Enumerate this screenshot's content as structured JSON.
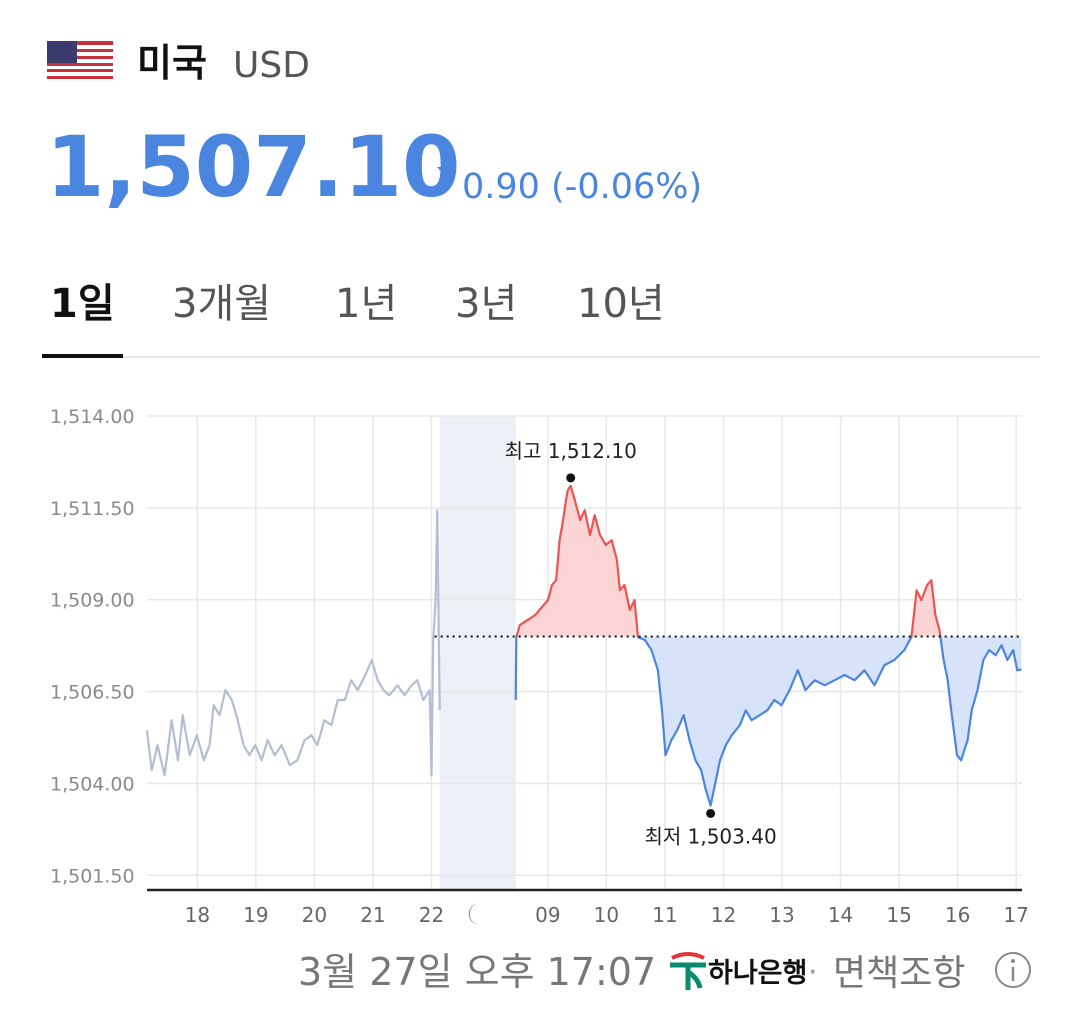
{
  "header": {
    "country": "미국",
    "currency": "USD",
    "rate": "1,507.10",
    "change": "0.90 (-0.06%)"
  },
  "tabs": [
    "1일",
    "3개월",
    "1년",
    "3년",
    "10년"
  ],
  "chart_data": {
    "type": "line",
    "ylim": [
      1501.1,
      1514.0
    ],
    "yticks": [
      {
        "value": 1514.0,
        "label": "1,514.00"
      },
      {
        "value": 1511.5,
        "label": "1,511.50"
      },
      {
        "value": 1509.0,
        "label": "1,509.00"
      },
      {
        "value": 1506.5,
        "label": "1,506.50"
      },
      {
        "value": 1504.0,
        "label": "1,504.00"
      },
      {
        "value": 1501.5,
        "label": "1,501.50"
      }
    ],
    "grid": true,
    "reference_line": 1508.0,
    "sessions": [
      {
        "xlim": [
          17.14,
          22.14
        ],
        "xticks": [
          18,
          19,
          20,
          21,
          22
        ],
        "series": {
          "color": "#b3bdd3",
          "x": [
            17.14,
            17.22,
            17.32,
            17.44,
            17.56,
            17.67,
            17.75,
            17.87,
            17.99,
            18.11,
            18.21,
            18.28,
            18.38,
            18.48,
            18.59,
            18.69,
            18.79,
            18.89,
            18.99,
            19.1,
            19.2,
            19.32,
            19.44,
            19.58,
            19.71,
            19.83,
            19.95,
            20.05,
            20.17,
            20.29,
            20.4,
            20.52,
            20.63,
            20.74,
            20.87,
            20.98,
            21.08,
            21.18,
            21.28,
            21.42,
            21.54,
            21.66,
            21.76,
            21.86,
            21.97,
            22.0,
            22.03,
            22.07,
            22.1,
            22.14
          ],
          "values": [
            1505.45,
            1504.36,
            1505.04,
            1504.22,
            1505.72,
            1504.63,
            1505.86,
            1504.77,
            1505.31,
            1504.63,
            1505.04,
            1506.13,
            1505.86,
            1506.54,
            1506.27,
            1505.72,
            1505.04,
            1504.77,
            1505.04,
            1504.63,
            1505.18,
            1504.77,
            1505.04,
            1504.5,
            1504.63,
            1505.18,
            1505.31,
            1505.04,
            1505.72,
            1505.59,
            1506.27,
            1506.27,
            1506.81,
            1506.54,
            1506.95,
            1507.36,
            1506.81,
            1506.54,
            1506.4,
            1506.67,
            1506.4,
            1506.67,
            1506.81,
            1506.27,
            1506.54,
            1504.22,
            1507.9,
            1508.99,
            1511.44,
            1505.99
          ]
        }
      },
      {
        "xlim": [
          8.45,
          17.1
        ],
        "xticks": [
          {
            "value": 9,
            "label": "09"
          },
          10,
          11,
          12,
          13,
          14,
          15,
          16,
          17
        ],
        "series": {
          "color": "#4a86e0",
          "color_above": "#ef5350",
          "fill": "#d6e3f8",
          "fill_above": "#fbd5d5",
          "x": [
            8.45,
            8.46,
            8.52,
            8.78,
            9.0,
            9.07,
            9.14,
            9.2,
            9.26,
            9.31,
            9.34,
            9.39,
            9.46,
            9.55,
            9.63,
            9.72,
            9.8,
            9.89,
            9.99,
            10.09,
            10.18,
            10.23,
            10.31,
            10.4,
            10.48,
            10.54,
            10.66,
            10.77,
            10.88,
            10.95,
            11.01,
            11.11,
            11.21,
            11.32,
            11.42,
            11.52,
            11.62,
            11.7,
            11.78,
            11.87,
            11.94,
            12.04,
            12.14,
            12.28,
            12.38,
            12.48,
            12.62,
            12.75,
            12.87,
            12.99,
            13.13,
            13.27,
            13.4,
            13.56,
            13.73,
            13.9,
            14.07,
            14.24,
            14.41,
            14.58,
            14.75,
            14.92,
            15.09,
            15.21,
            15.3,
            15.38,
            15.48,
            15.55,
            15.62,
            15.69,
            15.76,
            15.83,
            15.89,
            15.99,
            16.06,
            16.17,
            16.24,
            16.34,
            16.44,
            16.54,
            16.65,
            16.75,
            16.85,
            16.95,
            17.02,
            17.09
          ],
          "values": [
            1506.27,
            1507.98,
            1508.31,
            1508.58,
            1508.99,
            1509.4,
            1509.53,
            1510.62,
            1511.17,
            1511.71,
            1511.98,
            1512.1,
            1511.71,
            1511.17,
            1511.44,
            1510.76,
            1511.3,
            1510.76,
            1510.49,
            1510.62,
            1510.08,
            1509.26,
            1509.4,
            1508.72,
            1508.99,
            1507.98,
            1507.9,
            1507.63,
            1507.08,
            1505.99,
            1504.77,
            1505.18,
            1505.45,
            1505.86,
            1505.18,
            1504.63,
            1504.36,
            1503.82,
            1503.4,
            1504.09,
            1504.63,
            1505.04,
            1505.31,
            1505.59,
            1505.99,
            1505.72,
            1505.86,
            1505.99,
            1506.27,
            1506.13,
            1506.54,
            1507.08,
            1506.54,
            1506.81,
            1506.67,
            1506.81,
            1506.95,
            1506.81,
            1507.08,
            1506.67,
            1507.22,
            1507.36,
            1507.63,
            1507.98,
            1509.26,
            1508.99,
            1509.4,
            1509.53,
            1508.58,
            1508.17,
            1507.36,
            1506.81,
            1505.99,
            1504.77,
            1504.63,
            1505.18,
            1505.99,
            1506.54,
            1507.36,
            1507.63,
            1507.49,
            1507.76,
            1507.36,
            1507.63,
            1507.08,
            1507.1
          ]
        },
        "annotations": [
          {
            "label": "최고 1,512.10",
            "x": 9.39,
            "value": 1512.1,
            "position": "above"
          },
          {
            "label": "최저 1,503.40",
            "x": 11.78,
            "value": 1503.4,
            "position": "below"
          }
        ]
      }
    ]
  },
  "footer": {
    "timestamp": "3월 27일 오후 17:07",
    "provider": "하나은행",
    "separator": "·",
    "disclaimer": "면책조항"
  }
}
